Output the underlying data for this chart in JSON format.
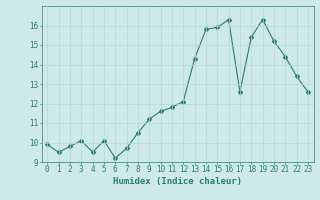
{
  "x": [
    0,
    1,
    2,
    3,
    4,
    5,
    6,
    7,
    8,
    9,
    10,
    11,
    12,
    13,
    14,
    15,
    16,
    17,
    18,
    19,
    20,
    21,
    22,
    23
  ],
  "y": [
    9.9,
    9.5,
    9.8,
    10.1,
    9.5,
    10.1,
    9.2,
    9.7,
    10.5,
    11.2,
    11.6,
    11.8,
    12.1,
    14.3,
    15.8,
    15.9,
    16.3,
    12.6,
    15.4,
    16.3,
    15.2,
    14.4,
    13.4,
    12.6
  ],
  "line_color": "#2a7d6e",
  "marker": "D",
  "marker_size": 2.0,
  "bg_color": "#ceeae7",
  "grid_color": "#b8d8d5",
  "xlabel": "Humidex (Indice chaleur)",
  "ylim": [
    9,
    17
  ],
  "xlim": [
    -0.5,
    23.5
  ],
  "yticks": [
    9,
    10,
    11,
    12,
    13,
    14,
    15,
    16
  ],
  "xtick_labels": [
    "0",
    "1",
    "2",
    "3",
    "4",
    "5",
    "6",
    "7",
    "8",
    "9",
    "10",
    "11",
    "12",
    "13",
    "14",
    "15",
    "16",
    "17",
    "18",
    "19",
    "20",
    "21",
    "22",
    "23"
  ],
  "tick_color": "#2a7d6e",
  "label_color": "#2a7d6e",
  "axis_color": "#2a7d6e",
  "xlabel_fontsize": 6.5,
  "tick_fontsize": 5.5,
  "linewidth": 0.8
}
